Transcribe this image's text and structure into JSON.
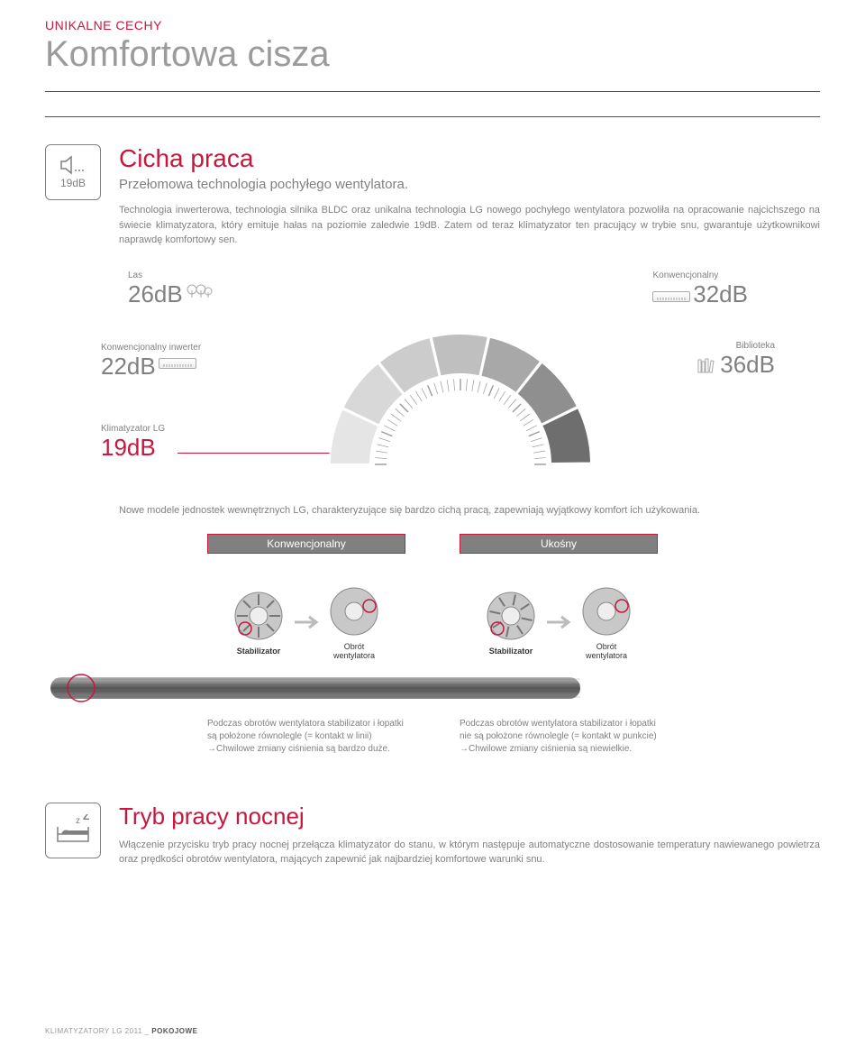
{
  "section_label": "UNIKALNE CECHY",
  "page_title": "Komfortowa cisza",
  "quiet": {
    "icon_label": "19dB",
    "title": "Cicha praca",
    "subtitle": "Przełomowa technologia pochyłego wentylatora.",
    "description": "Technologia inwerterowa, technologia silnika BLDC oraz unikalna technologia LG nowego pochyłego wentylatora pozwoliła na opracowanie najcichszego na świecie klimatyzatora, który emituje hałas na poziomie zaledwie 19dB. Zatem od teraz klimatyzator ten pracujący w trybie snu, gwarantuje użytkownikowi naprawdę komfortowy sen."
  },
  "gauge": {
    "forest": {
      "label": "Las",
      "value": "26dB"
    },
    "conv": {
      "label": "Konwencjonalny",
      "value": "32dB"
    },
    "conv_inv": {
      "label": "Konwencjonalny inwerter",
      "value": "22dB"
    },
    "library": {
      "label": "Biblioteka",
      "value": "36dB"
    },
    "lg": {
      "label": "Klimatyzator LG",
      "value": "19dB"
    },
    "segments": [
      "#e5e5e5",
      "#d8d8d8",
      "#cccccc",
      "#bfbfbf",
      "#a8a8a8",
      "#8f8f8f",
      "#6e6e6e"
    ]
  },
  "models_text": "Nowe modele jednostek wewnętrznych LG, charakteryzujące się bardzo cichą pracą, zapewniają wyjątkowy komfort ich użykowania.",
  "compare": {
    "left_head": "Konwencjonalny",
    "right_head": "Ukośny",
    "stabilizer": "Stabilizator",
    "rotation": "Obrót\nwentylatora",
    "left_desc": "Podczas obrotów wentylatora stabilizator i łopatki są położone równolegle (= kontakt w linii) →Chwilowe zmiany ciśnienia są bardzo duże.",
    "right_desc": "Podczas obrotów wentylatora stabilizator i łopatki nie są położone równolegle (= kontakt w punkcie) →Chwilowe zmiany ciśnienia są niewielkie."
  },
  "night": {
    "title": "Tryb pracy nocnej",
    "description": "Włączenie przycisku tryb pracy nocnej przełącza klimatyzator do stanu, w którym następuje automatyczne dostosowanie temperatury nawiewanego powietrza oraz prędkości obrotów wentylatora, mających zapewnić jak najbardziej komfortowe warunki snu."
  },
  "footer": {
    "line": "KLIMATYZATORY LG 2011 _ ",
    "bold": "POKOJOWE"
  },
  "colors": {
    "accent": "#c9163d",
    "grey": "#808080"
  }
}
